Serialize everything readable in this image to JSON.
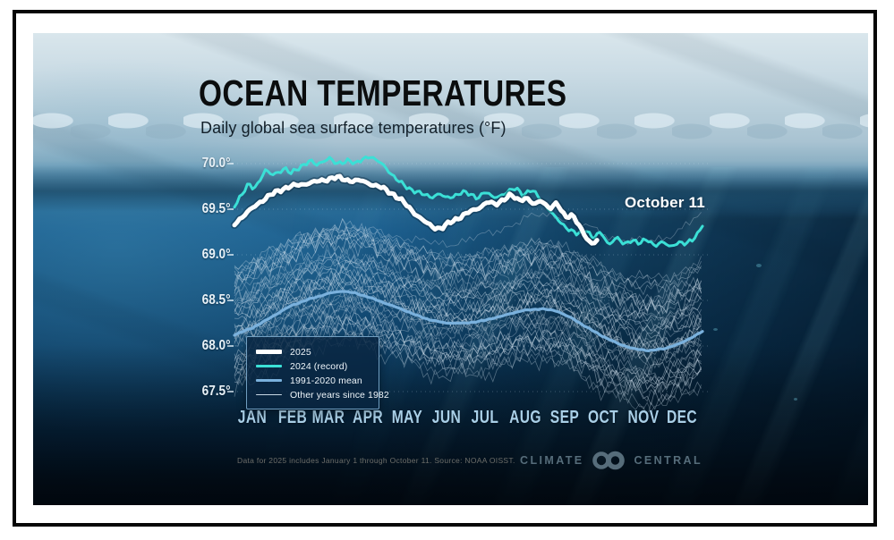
{
  "header": {
    "title": "OCEAN TEMPERATURES",
    "subtitle": "Daily global sea surface temperatures (°F)"
  },
  "annotation": {
    "label": "October 11"
  },
  "legend": {
    "items": [
      {
        "label": "2025",
        "color": "#ffffff",
        "thickness": 5
      },
      {
        "label": "2024 (record)",
        "color": "#3be0d6",
        "thickness": 3
      },
      {
        "label": "1991-2020 mean",
        "color": "#7ab1dd",
        "thickness": 2.5
      },
      {
        "label": "Other years since 1982",
        "color": "#c7d8e4",
        "thickness": 1.2
      }
    ]
  },
  "footer": {
    "note": "Data for 2025 includes January 1 through October 11. Source: NOAA OISST.",
    "brand": {
      "left": "CLIMATE",
      "right": "CENTRAL"
    }
  },
  "chart_data": {
    "type": "line",
    "title": "OCEAN TEMPERATURES",
    "subtitle": "Daily global sea surface temperatures (°F)",
    "unit": "°F",
    "annotation": "October 11",
    "source": "NOAA OISST",
    "x_axis": {
      "categories": [
        "JAN",
        "FEB",
        "MAR",
        "APR",
        "MAY",
        "JUN",
        "JUL",
        "AUG",
        "SEP",
        "OCT",
        "NOV",
        "DEC"
      ],
      "domain_days": [
        1,
        365
      ]
    },
    "y_axis": {
      "tick_labels": [
        "70.0°",
        "69.5°",
        "69.0°",
        "68.5°",
        "68.0°",
        "67.5°"
      ],
      "tick_values": [
        70.0,
        69.5,
        69.0,
        68.5,
        68.0,
        67.5
      ],
      "range": [
        67.3,
        70.15
      ],
      "grid": true
    },
    "legend_position": "bottom-left",
    "series": [
      {
        "name": "2025",
        "color": "#ffffff",
        "width": 5,
        "jitter": 0.026,
        "ends_day": 284,
        "points": [
          [
            1,
            69.33
          ],
          [
            6,
            69.4
          ],
          [
            12,
            69.48
          ],
          [
            20,
            69.58
          ],
          [
            28,
            69.65
          ],
          [
            36,
            69.7
          ],
          [
            44,
            69.74
          ],
          [
            52,
            69.77
          ],
          [
            60,
            69.8
          ],
          [
            70,
            69.82
          ],
          [
            80,
            69.84
          ],
          [
            90,
            69.81
          ],
          [
            100,
            69.82
          ],
          [
            108,
            69.78
          ],
          [
            116,
            69.73
          ],
          [
            124,
            69.66
          ],
          [
            132,
            69.58
          ],
          [
            140,
            69.48
          ],
          [
            148,
            69.38
          ],
          [
            156,
            69.3
          ],
          [
            162,
            69.28
          ],
          [
            168,
            69.34
          ],
          [
            176,
            69.41
          ],
          [
            184,
            69.48
          ],
          [
            192,
            69.53
          ],
          [
            198,
            69.58
          ],
          [
            204,
            69.54
          ],
          [
            210,
            69.6
          ],
          [
            216,
            69.65
          ],
          [
            222,
            69.6
          ],
          [
            228,
            69.64
          ],
          [
            234,
            69.55
          ],
          [
            240,
            69.6
          ],
          [
            246,
            69.5
          ],
          [
            252,
            69.55
          ],
          [
            258,
            69.42
          ],
          [
            264,
            69.44
          ],
          [
            270,
            69.3
          ],
          [
            276,
            69.17
          ],
          [
            280,
            69.12
          ],
          [
            284,
            69.17
          ]
        ]
      },
      {
        "name": "2024 (record)",
        "color": "#3be0d6",
        "width": 3,
        "jitter": 0.03,
        "ends_day": 365,
        "points": [
          [
            1,
            69.55
          ],
          [
            4,
            69.62
          ],
          [
            8,
            69.7
          ],
          [
            12,
            69.78
          ],
          [
            16,
            69.72
          ],
          [
            20,
            69.8
          ],
          [
            25,
            69.92
          ],
          [
            30,
            69.86
          ],
          [
            35,
            69.9
          ],
          [
            40,
            69.96
          ],
          [
            45,
            69.9
          ],
          [
            50,
            69.95
          ],
          [
            55,
            70.0
          ],
          [
            60,
            70.03
          ],
          [
            65,
            69.97
          ],
          [
            70,
            70.02
          ],
          [
            75,
            70.06
          ],
          [
            80,
            69.99
          ],
          [
            85,
            70.02
          ],
          [
            90,
            70.06
          ],
          [
            95,
            70.0
          ],
          [
            100,
            70.04
          ],
          [
            106,
            70.08
          ],
          [
            112,
            70.02
          ],
          [
            118,
            69.96
          ],
          [
            124,
            69.88
          ],
          [
            130,
            69.8
          ],
          [
            136,
            69.74
          ],
          [
            142,
            69.7
          ],
          [
            148,
            69.65
          ],
          [
            154,
            69.62
          ],
          [
            160,
            69.67
          ],
          [
            166,
            69.62
          ],
          [
            172,
            69.66
          ],
          [
            178,
            69.7
          ],
          [
            184,
            69.66
          ],
          [
            190,
            69.62
          ],
          [
            196,
            69.68
          ],
          [
            202,
            69.62
          ],
          [
            208,
            69.66
          ],
          [
            214,
            69.7
          ],
          [
            220,
            69.74
          ],
          [
            226,
            69.66
          ],
          [
            232,
            69.7
          ],
          [
            238,
            69.62
          ],
          [
            244,
            69.52
          ],
          [
            250,
            69.42
          ],
          [
            256,
            69.35
          ],
          [
            262,
            69.28
          ],
          [
            268,
            69.22
          ],
          [
            274,
            69.28
          ],
          [
            280,
            69.17
          ],
          [
            286,
            69.24
          ],
          [
            292,
            69.12
          ],
          [
            298,
            69.2
          ],
          [
            304,
            69.12
          ],
          [
            310,
            69.17
          ],
          [
            316,
            69.11
          ],
          [
            322,
            69.16
          ],
          [
            328,
            69.1
          ],
          [
            334,
            69.14
          ],
          [
            340,
            69.1
          ],
          [
            346,
            69.15
          ],
          [
            352,
            69.11
          ],
          [
            357,
            69.16
          ],
          [
            361,
            69.22
          ],
          [
            365,
            69.32
          ]
        ]
      },
      {
        "name": "1991-2020 mean",
        "color": "#7ab1dd",
        "width": 3.2,
        "jitter": 0.006,
        "ends_day": 365,
        "points": [
          [
            1,
            68.12
          ],
          [
            15,
            68.2
          ],
          [
            30,
            68.32
          ],
          [
            45,
            68.44
          ],
          [
            60,
            68.52
          ],
          [
            75,
            68.58
          ],
          [
            85,
            68.6
          ],
          [
            95,
            68.58
          ],
          [
            105,
            68.54
          ],
          [
            120,
            68.46
          ],
          [
            135,
            68.38
          ],
          [
            150,
            68.3
          ],
          [
            165,
            68.25
          ],
          [
            180,
            68.25
          ],
          [
            195,
            68.28
          ],
          [
            210,
            68.33
          ],
          [
            225,
            68.39
          ],
          [
            240,
            68.41
          ],
          [
            252,
            68.38
          ],
          [
            264,
            68.3
          ],
          [
            276,
            68.2
          ],
          [
            288,
            68.1
          ],
          [
            300,
            68.02
          ],
          [
            312,
            67.97
          ],
          [
            324,
            67.95
          ],
          [
            336,
            67.97
          ],
          [
            348,
            68.03
          ],
          [
            365,
            68.16
          ]
        ]
      },
      {
        "name": "Other years since 1982",
        "band": true,
        "color": "#d3e2ee",
        "width": 0.8,
        "count": 42,
        "years": [
          1982,
          2023
        ],
        "offset_range": [
          -0.55,
          0.78
        ],
        "jitter": 0.12
      }
    ]
  }
}
